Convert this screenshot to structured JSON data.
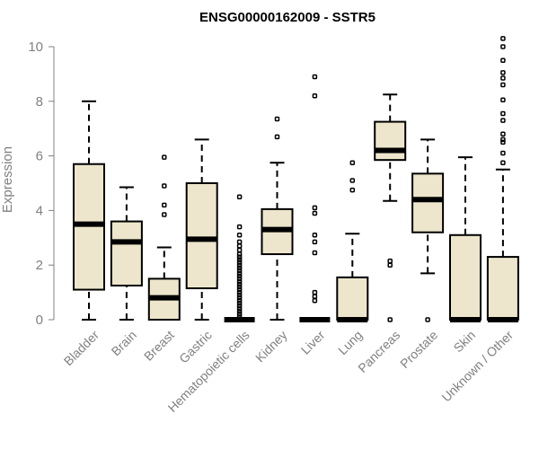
{
  "chart_data": {
    "type": "boxplot",
    "title": "ENSG00000162009 - SSTR5",
    "ylabel": "Expression",
    "xlabel": "",
    "ylim": [
      0,
      10
    ],
    "yticks": [
      0,
      2,
      4,
      6,
      8,
      10
    ],
    "box_fill": "#ede6cc",
    "median_color": "#000000",
    "axis_color": "#808080",
    "categories": [
      "Bladder",
      "Brain",
      "Breast",
      "Gastric",
      "Hematopoietic cells",
      "Kidney",
      "Liver",
      "Lung",
      "Pancreas",
      "Prostate",
      "Skin",
      "Unknown / Other"
    ],
    "series": [
      {
        "name": "Bladder",
        "whisker_low": 0,
        "q1": 1.1,
        "median": 3.5,
        "q3": 5.7,
        "whisker_high": 8.0,
        "outliers": []
      },
      {
        "name": "Brain",
        "whisker_low": 0,
        "q1": 1.25,
        "median": 2.85,
        "q3": 3.6,
        "whisker_high": 4.85,
        "outliers": []
      },
      {
        "name": "Breast",
        "whisker_low": 0,
        "q1": 0,
        "median": 0.8,
        "q3": 1.5,
        "whisker_high": 2.65,
        "outliers": [
          3.85,
          4.2,
          4.9,
          5.95
        ]
      },
      {
        "name": "Gastric",
        "whisker_low": 0,
        "q1": 1.15,
        "median": 2.95,
        "q3": 5.0,
        "whisker_high": 6.6,
        "outliers": []
      },
      {
        "name": "Hematopoietic cells",
        "whisker_low": 0,
        "q1": 0,
        "median": 0,
        "q3": 0,
        "whisker_high": 0,
        "outliers": [
          0.1,
          0.2,
          0.3,
          0.4,
          0.5,
          0.6,
          0.7,
          0.8,
          0.9,
          1.0,
          1.1,
          1.2,
          1.3,
          1.4,
          1.5,
          1.6,
          1.7,
          1.8,
          1.9,
          2.0,
          2.1,
          2.2,
          2.3,
          2.4,
          2.55,
          2.7,
          2.85,
          3.1,
          3.4,
          4.5
        ]
      },
      {
        "name": "Kidney",
        "whisker_low": 0,
        "q1": 2.4,
        "median": 3.3,
        "q3": 4.05,
        "whisker_high": 5.75,
        "outliers": [
          6.7,
          7.35
        ]
      },
      {
        "name": "Liver",
        "whisker_low": 0,
        "q1": 0,
        "median": 0,
        "q3": 0,
        "whisker_high": 0,
        "outliers": [
          0.7,
          0.85,
          1.0,
          2.45,
          2.85,
          3.1,
          3.9,
          4.1,
          8.2,
          8.9
        ]
      },
      {
        "name": "Lung",
        "whisker_low": 0,
        "q1": 0,
        "median": 0,
        "q3": 1.55,
        "whisker_high": 3.15,
        "outliers": [
          4.75,
          5.1,
          5.75
        ]
      },
      {
        "name": "Pancreas",
        "whisker_low": 4.35,
        "q1": 5.85,
        "median": 6.2,
        "q3": 7.25,
        "whisker_high": 8.25,
        "outliers": [
          0,
          2.0,
          2.15
        ]
      },
      {
        "name": "Prostate",
        "whisker_low": 1.7,
        "q1": 3.2,
        "median": 4.4,
        "q3": 5.35,
        "whisker_high": 6.6,
        "outliers": [
          0
        ]
      },
      {
        "name": "Skin",
        "whisker_low": 0,
        "q1": 0,
        "median": 0,
        "q3": 3.1,
        "whisker_high": 5.95,
        "outliers": []
      },
      {
        "name": "Unknown / Other",
        "whisker_low": 0,
        "q1": 0,
        "median": 0,
        "q3": 2.3,
        "whisker_high": 5.5,
        "outliers": [
          5.75,
          6.1,
          6.5,
          6.6,
          6.8,
          7.3,
          7.55,
          8.05,
          8.6,
          8.85,
          9.05,
          9.5,
          10.0,
          10.3
        ]
      }
    ]
  }
}
